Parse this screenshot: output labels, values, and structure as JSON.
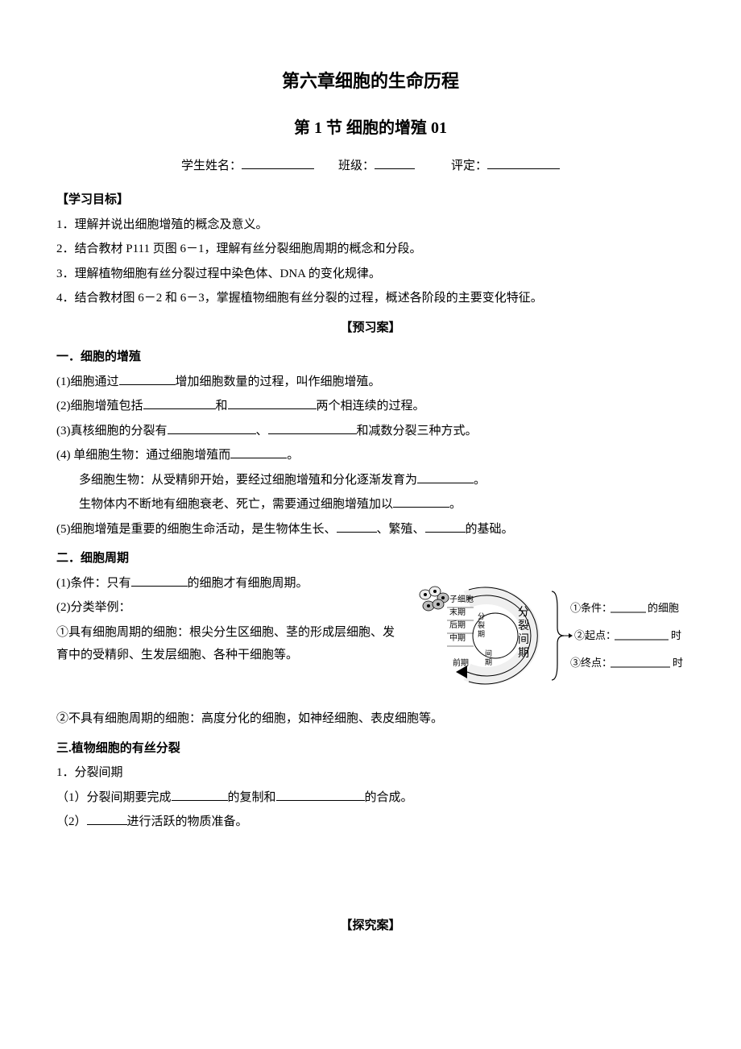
{
  "chapter_title": "第六章细胞的生命历程",
  "section_title": "第 1 节   细胞的增殖 01",
  "student_line": {
    "name_label": "学生姓名：",
    "class_label": "班级：",
    "grade_label": "评定："
  },
  "goals": {
    "heading": "【学习目标】",
    "items": [
      "1．理解并说出细胞增殖的概念及意义。",
      "2．结合教材 P111 页图 6－1，理解有丝分裂细胞周期的概念和分段。",
      "3．理解植物细胞有丝分裂过程中染色体、DNA 的变化规律。",
      "4．结合教材图 6－2 和 6－3，掌握植物细胞有丝分裂的过程，概述各阶段的主要变化特征。"
    ]
  },
  "preview_heading": "【预习案】",
  "s1": {
    "heading": "一．细胞的增殖",
    "p1a": "(1)细胞通过",
    "p1b": "增加细胞数量的过程，叫作细胞增殖。",
    "p2a": "(2)细胞增殖包括",
    "p2b": "和",
    "p2c": "两个相连续的过程。",
    "p3a": "(3)真核细胞的分裂有",
    "p3b": "、",
    "p3c": "和减数分裂三种方式。",
    "p4a": "(4)  单细胞生物：通过细胞增殖而",
    "p4b": "。",
    "p4c": "多细胞生物：从受精卵开始，要经过细胞增殖和分化逐渐发育为",
    "p4d": "。",
    "p4e": "生物体内不断地有细胞衰老、死亡，需要通过细胞增殖加以",
    "p4f": "。",
    "p5a": "(5)细胞增殖是重要的细胞生命活动，是生物体生长、",
    "p5b": "、繁殖、",
    "p5c": "的基础。"
  },
  "s2": {
    "heading": "二．细胞周期",
    "p1a": "(1)条件：只有",
    "p1b": "的细胞才有细胞周期。",
    "p2": "(2)分类举例：",
    "p2a": "①具有细胞周期的细胞：根尖分生区细胞、茎的形成层细胞、发育中的受精卵、生发层细胞、各种干细胞等。",
    "p2b": "②不具有细胞周期的细胞：高度分化的细胞，如神经细胞、表皮细胞等。"
  },
  "s3": {
    "heading": "三.植物细胞的有丝分裂",
    "p1": "1．分裂间期",
    "p1a": "（1）分裂间期要完成",
    "p1b": "的复制和",
    "p1c": "的合成。",
    "p2a": "（2）",
    "p2b": "进行活跃的物质准备。"
  },
  "explore_heading": "【探究案】",
  "diagram": {
    "phases": {
      "zixibao": "子细胞",
      "moqi": "末期",
      "houqi": "后期",
      "zhongqi": "中期",
      "qianqi": "前期",
      "fenlie": "分裂期",
      "jianqi": "间期"
    },
    "center_label": {
      "l1": "分",
      "l2": "裂",
      "l3": "间",
      "l4": "期"
    },
    "right": {
      "r1a": "①条件：",
      "r1b": "的细胞",
      "r2a": "②起点：",
      "r2b": "时",
      "r3a": "③终点：",
      "r3b": "时"
    },
    "colors": {
      "stroke": "#000000",
      "fill_light": "#efefef",
      "fill_dark": "#bdbdbd",
      "bg": "#ffffff"
    },
    "fontsize_small": 10,
    "fontsize_center": 14,
    "fontsize_right": 13
  }
}
